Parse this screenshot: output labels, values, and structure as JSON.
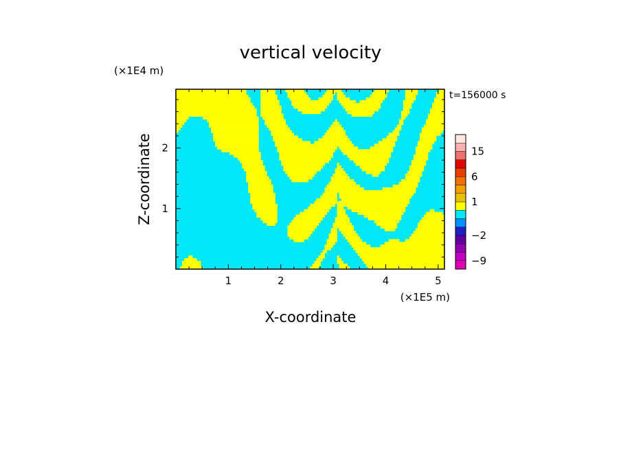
{
  "chart_data": {
    "type": "heatmap",
    "title": "vertical velocity",
    "xlabel": "X-coordinate",
    "ylabel": "Z-coordinate",
    "x_unit": "(×1E5 m)",
    "y_unit": "(×1E4 m)",
    "time_label": "t=156000 s",
    "xlim": [
      0,
      5.12
    ],
    "ylim": [
      0,
      2.97
    ],
    "x_ticks": [
      "1",
      "2",
      "3",
      "4",
      "5"
    ],
    "x_tick_values": [
      1,
      2,
      3,
      4,
      5
    ],
    "y_ticks": [
      "1",
      "2"
    ],
    "y_tick_values": [
      1,
      2
    ],
    "colorbar": {
      "levels": [
        -12,
        -9,
        -6,
        -4,
        -2,
        -1,
        -0.5,
        0.5,
        1,
        2,
        4,
        6,
        9,
        12,
        15,
        18,
        21
      ],
      "colors": [
        "#e000b0",
        "#c000c0",
        "#9000b0",
        "#6000a0",
        "#2020c0",
        "#0090ff",
        "#00e8f8",
        "#ffff00",
        "#e8c000",
        "#f0a000",
        "#f07000",
        "#e84000",
        "#e00000",
        "#f07070",
        "#f8b0b0",
        "#fde8e0"
      ],
      "tick_labels": [
        "15",
        "6",
        "1",
        "−2",
        "−9"
      ],
      "tick_values": [
        15,
        6,
        1,
        -2,
        -9
      ]
    },
    "field_colors": {
      "negative": "#00e8f8",
      "positive": "#ffff00"
    }
  }
}
